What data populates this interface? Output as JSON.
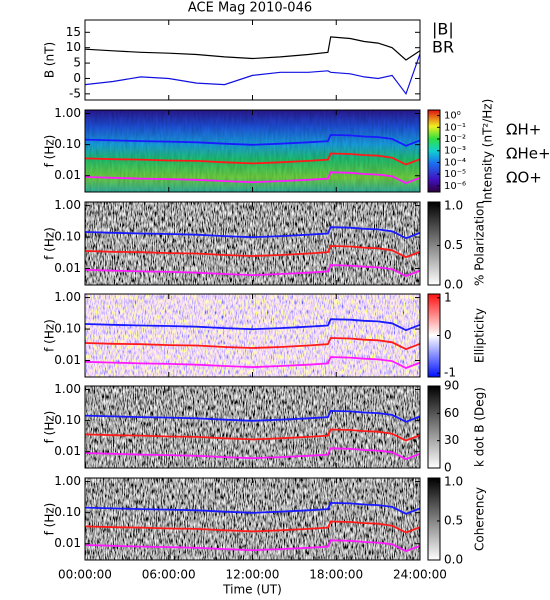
{
  "chart_data": [
    {
      "type": "line",
      "title": "ACE Mag 2010-046",
      "ylabel": "B (nT)",
      "x": [
        0,
        2,
        4,
        6,
        8,
        10,
        12,
        14,
        16,
        17.4,
        17.6,
        19,
        20,
        21,
        22,
        23,
        24
      ],
      "ylim": [
        -7,
        19
      ],
      "yticks": [
        15,
        10,
        5,
        0,
        -5
      ],
      "series": [
        {
          "name": "|B|",
          "color": "#000000",
          "values": [
            9.5,
            9,
            8.5,
            8.2,
            7.8,
            7,
            6.5,
            7,
            7.8,
            8.5,
            13.5,
            13,
            12,
            11.5,
            10,
            6,
            9
          ]
        },
        {
          "name": "BR",
          "color": "#1010e0",
          "values": [
            -2,
            -1,
            0.5,
            0,
            -1.5,
            -2,
            1,
            2,
            2,
            2.5,
            2,
            1.5,
            0.5,
            0,
            1,
            -5,
            8
          ]
        }
      ]
    },
    {
      "type": "spectrogram",
      "ylabel": "f (Hz)",
      "log": true,
      "ylim": [
        0.003,
        1.3
      ],
      "yticks": [
        {
          "value": 1,
          "label": "1.00"
        },
        {
          "value": 0.1,
          "label": "0.10"
        },
        {
          "value": 0.01,
          "label": "0.01"
        }
      ],
      "colormap": "rainbow",
      "colorbar_label": "Intensity (nT²/Hz)",
      "clog": true,
      "clim": [
        3e-07,
        3
      ],
      "cticks": [
        {
          "value": 1,
          "label": "10⁰"
        },
        {
          "value": 0.1,
          "label": "10⁻¹"
        },
        {
          "value": 0.01,
          "label": "10⁻²"
        },
        {
          "value": 0.001,
          "label": "10⁻³"
        },
        {
          "value": 0.0001,
          "label": "10⁻⁴"
        },
        {
          "value": 1e-05,
          "label": "10⁻⁵"
        },
        {
          "value": 1e-06,
          "label": "10⁻⁶"
        }
      ],
      "x": [
        0,
        2,
        4,
        6,
        8,
        10,
        12,
        14,
        16,
        17.4,
        17.6,
        19,
        20,
        21,
        22,
        23,
        24
      ],
      "series": [
        {
          "name": "ΩH+",
          "color": "#1a1aff",
          "values": [
            0.145,
            0.137,
            0.13,
            0.125,
            0.119,
            0.107,
            0.099,
            0.107,
            0.119,
            0.13,
            0.206,
            0.198,
            0.183,
            0.175,
            0.153,
            0.092,
            0.137
          ]
        },
        {
          "name": "ΩHe+",
          "color": "#ff1a1a",
          "values": [
            0.036,
            0.034,
            0.033,
            0.031,
            0.03,
            0.027,
            0.025,
            0.027,
            0.03,
            0.033,
            0.052,
            0.05,
            0.046,
            0.044,
            0.038,
            0.023,
            0.034
          ]
        },
        {
          "name": "ΩO+",
          "color": "#ff1aff",
          "values": [
            0.0091,
            0.0086,
            0.0081,
            0.0078,
            0.0074,
            0.0067,
            0.0062,
            0.0067,
            0.0074,
            0.0081,
            0.0129,
            0.0124,
            0.0114,
            0.0109,
            0.0096,
            0.0058,
            0.0086
          ]
        }
      ]
    },
    {
      "type": "spectrogram",
      "ylabel": "f (Hz)",
      "log": true,
      "ylim": [
        0.003,
        1.3
      ],
      "yticks": [
        {
          "value": 1,
          "label": "1.00"
        },
        {
          "value": 0.1,
          "label": "0.10"
        },
        {
          "value": 0.01,
          "label": "0.01"
        }
      ],
      "colormap": "gray",
      "colorbar_label": "% Polarization",
      "clim": [
        0,
        1.05
      ],
      "cticks": [
        {
          "value": 0,
          "label": "0.0"
        },
        {
          "value": 0.5,
          "label": "0.5"
        },
        {
          "value": 1,
          "label": "1.0"
        }
      ],
      "x": [
        0,
        2,
        4,
        6,
        8,
        10,
        12,
        14,
        16,
        17.4,
        17.6,
        19,
        20,
        21,
        22,
        23,
        24
      ],
      "series": [
        {
          "color": "#1a1aff",
          "values": [
            0.145,
            0.137,
            0.13,
            0.125,
            0.119,
            0.107,
            0.099,
            0.107,
            0.119,
            0.13,
            0.206,
            0.198,
            0.183,
            0.175,
            0.153,
            0.092,
            0.137
          ]
        },
        {
          "color": "#ff1a1a",
          "values": [
            0.036,
            0.034,
            0.033,
            0.031,
            0.03,
            0.027,
            0.025,
            0.027,
            0.03,
            0.033,
            0.052,
            0.05,
            0.046,
            0.044,
            0.038,
            0.023,
            0.034
          ]
        },
        {
          "color": "#ff1aff",
          "values": [
            0.0091,
            0.0086,
            0.0081,
            0.0078,
            0.0074,
            0.0067,
            0.0062,
            0.0067,
            0.0074,
            0.0081,
            0.0129,
            0.0124,
            0.0114,
            0.0109,
            0.0096,
            0.0058,
            0.0086
          ]
        }
      ]
    },
    {
      "type": "spectrogram",
      "ylabel": "f (Hz)",
      "log": true,
      "ylim": [
        0.003,
        1.3
      ],
      "yticks": [
        {
          "value": 1,
          "label": "1.00"
        },
        {
          "value": 0.1,
          "label": "0.10"
        },
        {
          "value": 0.01,
          "label": "0.01"
        }
      ],
      "colormap": "bwr",
      "colorbar_label": "Ellipticity",
      "clim": [
        -1.1,
        1.1
      ],
      "cticks": [
        -1,
        0,
        1
      ],
      "x": [
        0,
        2,
        4,
        6,
        8,
        10,
        12,
        14,
        16,
        17.4,
        17.6,
        19,
        20,
        21,
        22,
        23,
        24
      ],
      "series": [
        {
          "color": "#1a1aff",
          "values": [
            0.145,
            0.137,
            0.13,
            0.125,
            0.119,
            0.107,
            0.099,
            0.107,
            0.119,
            0.13,
            0.206,
            0.198,
            0.183,
            0.175,
            0.153,
            0.092,
            0.137
          ]
        },
        {
          "color": "#ff1a1a",
          "values": [
            0.036,
            0.034,
            0.033,
            0.031,
            0.03,
            0.027,
            0.025,
            0.027,
            0.03,
            0.033,
            0.052,
            0.05,
            0.046,
            0.044,
            0.038,
            0.023,
            0.034
          ]
        },
        {
          "color": "#ff1aff",
          "values": [
            0.0091,
            0.0086,
            0.0081,
            0.0078,
            0.0074,
            0.0067,
            0.0062,
            0.0067,
            0.0074,
            0.0081,
            0.0129,
            0.0124,
            0.0114,
            0.0109,
            0.0096,
            0.0058,
            0.0086
          ]
        }
      ]
    },
    {
      "type": "spectrogram",
      "ylabel": "f (Hz)",
      "log": true,
      "ylim": [
        0.003,
        1.3
      ],
      "yticks": [
        {
          "value": 1,
          "label": "1.00"
        },
        {
          "value": 0.1,
          "label": "0.10"
        },
        {
          "value": 0.01,
          "label": "0.01"
        }
      ],
      "colormap": "gray",
      "colorbar_label": "k dot B (Deg)",
      "clim": [
        0,
        90
      ],
      "cticks": [
        0,
        30,
        60,
        90
      ],
      "x": [
        0,
        2,
        4,
        6,
        8,
        10,
        12,
        14,
        16,
        17.4,
        17.6,
        19,
        20,
        21,
        22,
        23,
        24
      ],
      "series": [
        {
          "color": "#1a1aff",
          "values": [
            0.145,
            0.137,
            0.13,
            0.125,
            0.119,
            0.107,
            0.099,
            0.107,
            0.119,
            0.13,
            0.206,
            0.198,
            0.183,
            0.175,
            0.153,
            0.092,
            0.137
          ]
        },
        {
          "color": "#ff1a1a",
          "values": [
            0.036,
            0.034,
            0.033,
            0.031,
            0.03,
            0.027,
            0.025,
            0.027,
            0.03,
            0.033,
            0.052,
            0.05,
            0.046,
            0.044,
            0.038,
            0.023,
            0.034
          ]
        },
        {
          "color": "#ff1aff",
          "values": [
            0.0091,
            0.0086,
            0.0081,
            0.0078,
            0.0074,
            0.0067,
            0.0062,
            0.0067,
            0.0074,
            0.0081,
            0.0129,
            0.0124,
            0.0114,
            0.0109,
            0.0096,
            0.0058,
            0.0086
          ]
        }
      ]
    },
    {
      "type": "spectrogram",
      "ylabel": "f (Hz)",
      "log": true,
      "ylim": [
        0.003,
        1.3
      ],
      "yticks": [
        {
          "value": 1,
          "label": "1.00"
        },
        {
          "value": 0.1,
          "label": "0.10"
        },
        {
          "value": 0.01,
          "label": "0.01"
        }
      ],
      "colormap": "gray",
      "colorbar_label": "Coherency",
      "clim": [
        0,
        1.05
      ],
      "cticks": [
        {
          "value": 0,
          "label": "0.0"
        },
        {
          "value": 0.5,
          "label": "0.5"
        },
        {
          "value": 1,
          "label": "1.0"
        }
      ],
      "x": [
        0,
        2,
        4,
        6,
        8,
        10,
        12,
        14,
        16,
        17.4,
        17.6,
        19,
        20,
        21,
        22,
        23,
        24
      ],
      "series": [
        {
          "color": "#1a1aff",
          "values": [
            0.145,
            0.137,
            0.13,
            0.125,
            0.119,
            0.107,
            0.099,
            0.107,
            0.119,
            0.13,
            0.206,
            0.198,
            0.183,
            0.175,
            0.153,
            0.092,
            0.137
          ]
        },
        {
          "color": "#ff1a1a",
          "values": [
            0.036,
            0.034,
            0.033,
            0.031,
            0.03,
            0.027,
            0.025,
            0.027,
            0.03,
            0.033,
            0.052,
            0.05,
            0.046,
            0.044,
            0.038,
            0.023,
            0.034
          ]
        },
        {
          "color": "#ff1aff",
          "values": [
            0.0091,
            0.0086,
            0.0081,
            0.0078,
            0.0074,
            0.0067,
            0.0062,
            0.0067,
            0.0074,
            0.0081,
            0.0129,
            0.0124,
            0.0114,
            0.0109,
            0.0096,
            0.0058,
            0.0086
          ]
        }
      ],
      "xlabel": "Time (UT)",
      "xlim": [
        0,
        24
      ],
      "xticks": [
        {
          "value": 0,
          "label": "00:00:00"
        },
        {
          "value": 6,
          "label": "06:00:00"
        },
        {
          "value": 12,
          "label": "12:00:00"
        },
        {
          "value": 18,
          "label": "18:00:00"
        },
        {
          "value": 24,
          "label": "24:00:00"
        }
      ]
    }
  ]
}
